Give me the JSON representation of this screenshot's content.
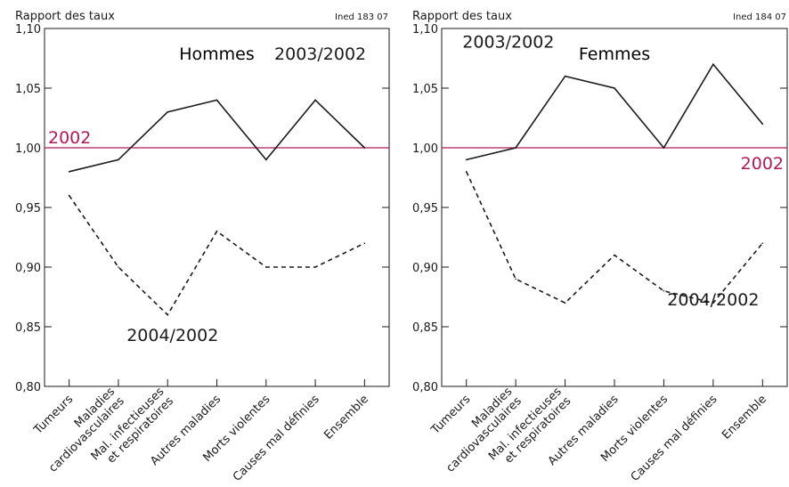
{
  "colors": {
    "reference": "#b0195a",
    "series": "#1a1a1a",
    "frame": "#1a1a1a"
  },
  "chart_data": [
    {
      "type": "line",
      "title": "Hommes",
      "ylabel": "Rapport des taux",
      "source": "Ined 183 07",
      "categories": [
        "Tumeurs",
        "Maladies cardiovasculaires",
        "Mal. infectieuses et respiratoires",
        "Autres maladies",
        "Morts violentes",
        "Causes mal définies",
        "Ensemble"
      ],
      "category_lines": [
        [
          "Tumeurs"
        ],
        [
          "Maladies",
          "cardiovasculaires"
        ],
        [
          "Mal. infectieuses",
          "et respiratoires"
        ],
        [
          "Autres maladies"
        ],
        [
          "Morts violentes"
        ],
        [
          "Causes mal définies"
        ],
        [
          "Ensemble"
        ]
      ],
      "ylim": [
        0.8,
        1.1
      ],
      "yticks": [
        0.8,
        0.85,
        0.9,
        0.95,
        1.0,
        1.05,
        1.1
      ],
      "ytick_labels": [
        "0,80",
        "0,85",
        "0,90",
        "0,95",
        "1,00",
        "1,05",
        "1,10"
      ],
      "reference": {
        "value": 1.0,
        "label": "2002",
        "label_side": "left"
      },
      "series": [
        {
          "name": "2003/2002",
          "style": "solid",
          "values": [
            0.98,
            0.99,
            1.03,
            1.04,
            0.99,
            1.04,
            1.0
          ],
          "label_pos": [
            5.1,
            1.074
          ]
        },
        {
          "name": "2004/2002",
          "style": "dashed",
          "values": [
            0.96,
            0.9,
            0.86,
            0.93,
            0.9,
            0.9,
            0.92
          ],
          "label_pos": [
            2.1,
            0.838
          ]
        }
      ]
    },
    {
      "type": "line",
      "title": "Femmes",
      "ylabel": "Rapport des taux",
      "source": "Ined 184 07",
      "categories": [
        "Tumeurs",
        "Maladies cardiovasculaires",
        "Mal. infectieuses et respiratoires",
        "Autres maladies",
        "Morts violentes",
        "Causes mal définies",
        "Ensemble"
      ],
      "category_lines": [
        [
          "Tumeurs"
        ],
        [
          "Maladies",
          "cardiovasculaires"
        ],
        [
          "Mal. infectieuses",
          "et respiratoires"
        ],
        [
          "Autres maladies"
        ],
        [
          "Morts violentes"
        ],
        [
          "Causes mal définies"
        ],
        [
          "Ensemble"
        ]
      ],
      "ylim": [
        0.8,
        1.1
      ],
      "yticks": [
        0.8,
        0.85,
        0.9,
        0.95,
        1.0,
        1.05,
        1.1
      ],
      "ytick_labels": [
        "0,80",
        "0,85",
        "0,90",
        "0,95",
        "1,00",
        "1,05",
        "1,10"
      ],
      "reference": {
        "value": 1.0,
        "label": "2002",
        "label_side": "right"
      },
      "series": [
        {
          "name": "2003/2002",
          "style": "solid",
          "values": [
            0.99,
            1.0,
            1.06,
            1.05,
            1.0,
            1.07,
            1.02
          ],
          "label_pos": [
            0.85,
            1.084
          ]
        },
        {
          "name": "2004/2002",
          "style": "dashed",
          "values": [
            0.98,
            0.89,
            0.87,
            0.91,
            0.88,
            0.87,
            0.92
          ],
          "label_pos": [
            5.0,
            0.868
          ]
        }
      ]
    }
  ]
}
